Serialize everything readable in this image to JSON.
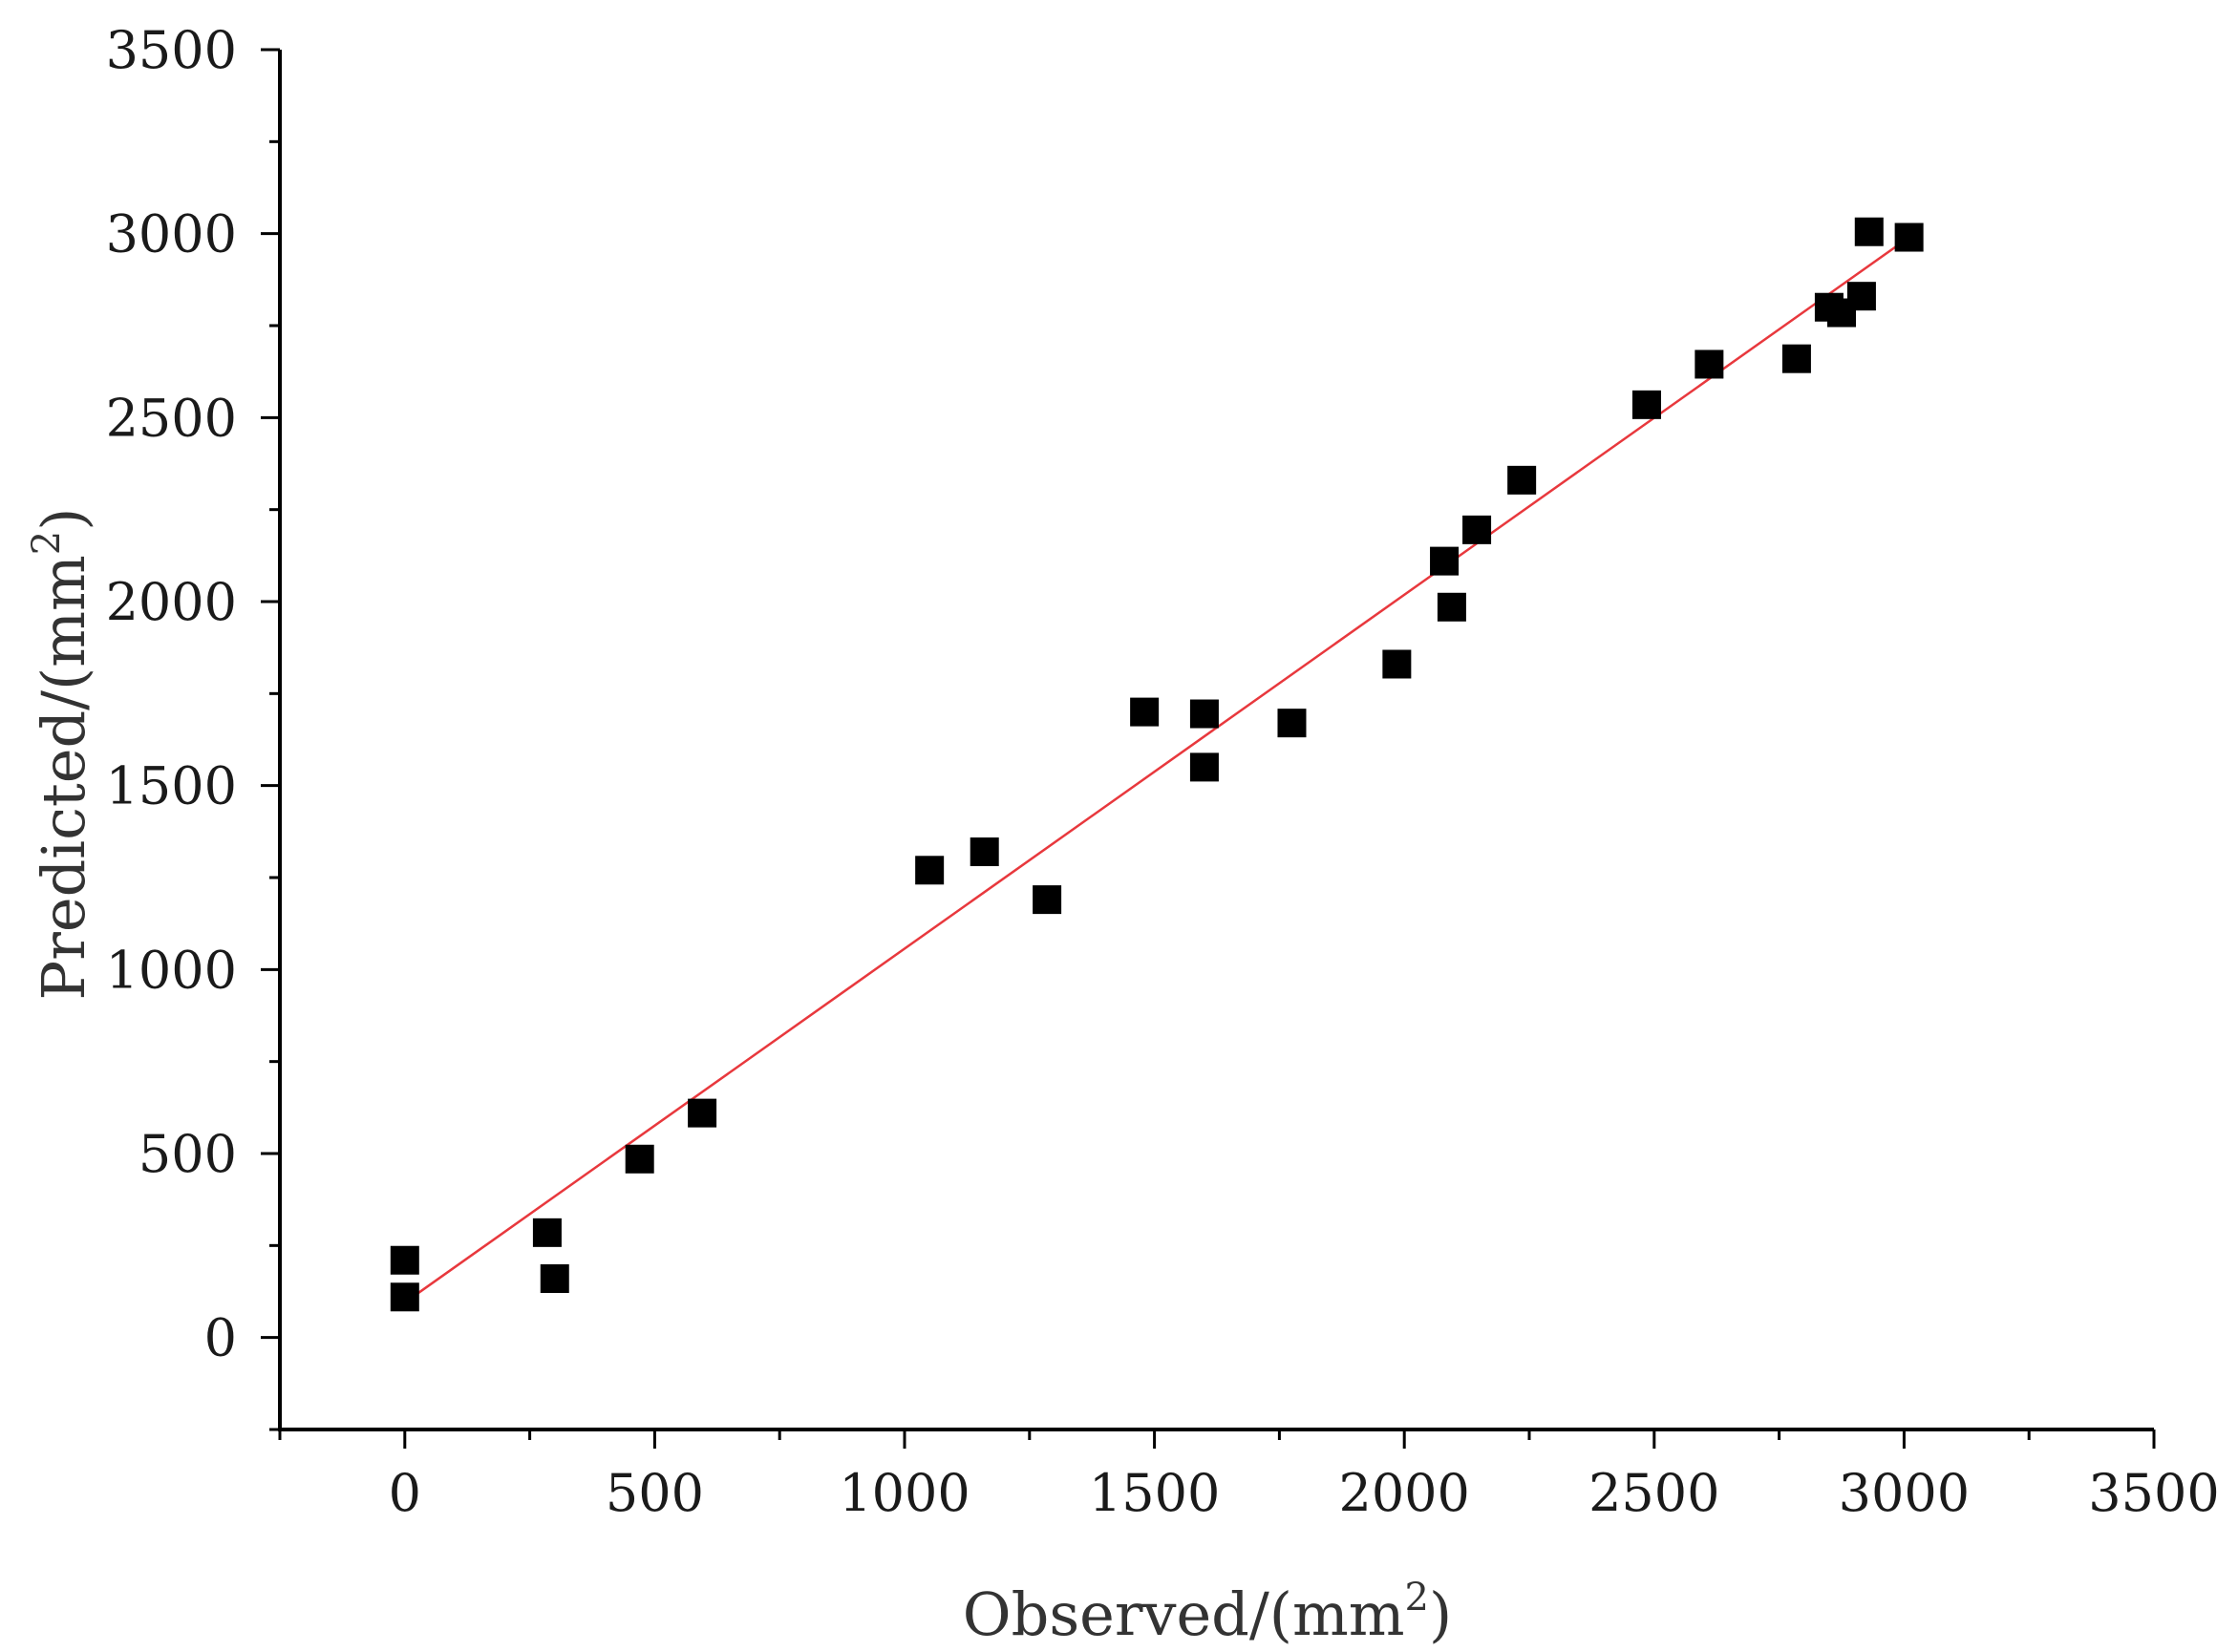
{
  "chart_data": {
    "type": "scatter",
    "xlabel_text": "Observed/(mm",
    "xlabel_sup": "2",
    "xlabel_close": ")",
    "ylabel_text": "Predicted/(mm",
    "ylabel_sup": "2",
    "ylabel_close": ")",
    "xlim": [
      -250,
      3500
    ],
    "ylim": [
      -250,
      3500
    ],
    "x_ticks": [
      0,
      500,
      1000,
      1500,
      2000,
      2500,
      3000,
      3500
    ],
    "y_ticks": [
      0,
      500,
      1000,
      1500,
      2000,
      2500,
      3000,
      3500
    ],
    "minor_tick_step": 250,
    "grid": false,
    "series": [
      {
        "marker": "square",
        "color": "#000000",
        "points": [
          {
            "x": 0,
            "y": 210
          },
          {
            "x": 0,
            "y": 110
          },
          {
            "x": 285,
            "y": 285
          },
          {
            "x": 300,
            "y": 160
          },
          {
            "x": 470,
            "y": 485
          },
          {
            "x": 595,
            "y": 610
          },
          {
            "x": 1050,
            "y": 1270
          },
          {
            "x": 1160,
            "y": 1320
          },
          {
            "x": 1285,
            "y": 1190
          },
          {
            "x": 1480,
            "y": 1700
          },
          {
            "x": 1600,
            "y": 1695
          },
          {
            "x": 1600,
            "y": 1550
          },
          {
            "x": 1775,
            "y": 1670
          },
          {
            "x": 1985,
            "y": 1830
          },
          {
            "x": 2080,
            "y": 2110
          },
          {
            "x": 2095,
            "y": 1985
          },
          {
            "x": 2145,
            "y": 2195
          },
          {
            "x": 2235,
            "y": 2330
          },
          {
            "x": 2485,
            "y": 2535
          },
          {
            "x": 2610,
            "y": 2645
          },
          {
            "x": 2785,
            "y": 2660
          },
          {
            "x": 2850,
            "y": 2800
          },
          {
            "x": 2875,
            "y": 2785
          },
          {
            "x": 2915,
            "y": 2830
          },
          {
            "x": 2930,
            "y": 3005
          },
          {
            "x": 3010,
            "y": 2990
          }
        ]
      }
    ],
    "fit_line": {
      "color": "#e8383d",
      "x": [
        0,
        3010
      ],
      "y": [
        95,
        2990
      ]
    }
  }
}
